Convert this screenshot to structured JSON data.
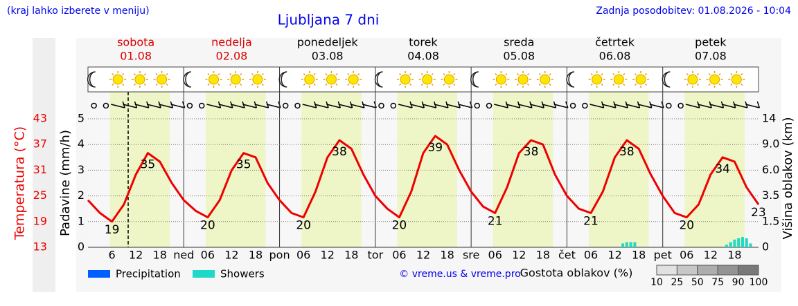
{
  "header": {
    "hint": "(kraj lahko izberete v meniju)",
    "title": "Ljubljana 7 dni",
    "updated": "Zadnja posodobitev: 01.08.2026 - 10:04"
  },
  "chart_data": {
    "type": "line",
    "days": [
      {
        "name": "sobota",
        "date": "01.08"
      },
      {
        "name": "nedelja",
        "date": "02.08"
      },
      {
        "name": "ponedeljek",
        "date": "03.08"
      },
      {
        "name": "torek",
        "date": "04.08"
      },
      {
        "name": "sreda",
        "date": "05.08"
      },
      {
        "name": "četrtek",
        "date": "06.08"
      },
      {
        "name": "petek",
        "date": "07.08"
      }
    ],
    "xlim": [
      0,
      168
    ],
    "xticks": [
      6,
      12,
      18,
      {
        "value": 24,
        "label": "ned"
      },
      {
        "value": 30,
        "label": "06"
      },
      {
        "value": 36,
        "label": "12"
      },
      {
        "value": 42,
        "label": "18"
      },
      {
        "value": 48,
        "label": "pon"
      },
      {
        "value": 54,
        "label": "06"
      },
      {
        "value": 60,
        "label": "12"
      },
      {
        "value": 66,
        "label": "18"
      },
      {
        "value": 72,
        "label": "tor"
      },
      {
        "value": 78,
        "label": "06"
      },
      {
        "value": 84,
        "label": "12"
      },
      {
        "value": 90,
        "label": "18"
      },
      {
        "value": 96,
        "label": "sre"
      },
      {
        "value": 102,
        "label": "06"
      },
      {
        "value": 108,
        "label": "12"
      },
      {
        "value": 114,
        "label": "18"
      },
      {
        "value": 120,
        "label": "čet"
      },
      {
        "value": 126,
        "label": "06"
      },
      {
        "value": 132,
        "label": "12"
      },
      {
        "value": 138,
        "label": "18"
      },
      {
        "value": 144,
        "label": "pet"
      },
      {
        "value": 150,
        "label": "06"
      },
      {
        "value": 156,
        "label": "12"
      },
      {
        "value": 162,
        "label": "18"
      }
    ],
    "now": 10.07,
    "daylight": [
      5.5,
      20.5
    ],
    "temperature": {
      "label": "Temperatura (°C)",
      "color": "#ee0000",
      "ylim": [
        13,
        43
      ],
      "yticks": [
        13,
        19,
        25,
        31,
        37,
        43
      ],
      "x": [
        0,
        3,
        6,
        9,
        12,
        15,
        18,
        21,
        24,
        27,
        30,
        33,
        36,
        39,
        42,
        45,
        48,
        51,
        54,
        57,
        60,
        63,
        66,
        69,
        72,
        75,
        78,
        81,
        84,
        87,
        90,
        93,
        96,
        99,
        102,
        105,
        108,
        111,
        114,
        117,
        120,
        123,
        126,
        129,
        132,
        135,
        138,
        141,
        144,
        147,
        150,
        153,
        156,
        159,
        162,
        165,
        168
      ],
      "values": [
        24,
        21,
        19,
        23,
        30,
        35,
        33,
        28,
        24,
        21.5,
        20,
        24,
        31,
        35,
        34,
        28,
        24,
        21,
        20,
        26,
        34,
        38,
        36,
        30,
        25,
        22,
        20,
        26,
        35,
        39,
        37,
        31,
        26,
        22.5,
        21,
        27,
        35,
        38,
        37,
        30,
        25,
        22,
        21,
        26,
        34,
        38,
        36,
        30,
        25,
        21,
        20,
        23,
        30,
        34,
        33,
        27,
        23
      ],
      "extremes": [
        {
          "x": 6,
          "value": 19
        },
        {
          "x": 15,
          "value": 35
        },
        {
          "x": 30,
          "value": 20
        },
        {
          "x": 39,
          "value": 35
        },
        {
          "x": 54,
          "value": 20
        },
        {
          "x": 63,
          "value": 38
        },
        {
          "x": 78,
          "value": 20
        },
        {
          "x": 87,
          "value": 39
        },
        {
          "x": 102,
          "value": 21
        },
        {
          "x": 111,
          "value": 38
        },
        {
          "x": 126,
          "value": 21
        },
        {
          "x": 135,
          "value": 38
        },
        {
          "x": 150,
          "value": 20
        },
        {
          "x": 159,
          "value": 34
        },
        {
          "x": 168,
          "value": 23
        }
      ]
    },
    "precipitation": {
      "label": "Padavine (mm/h)",
      "ylim": [
        0,
        5
      ],
      "yticks": [
        0,
        1,
        2,
        3,
        4,
        5
      ],
      "series": [
        {
          "name": "Precipitation",
          "color": "#0060ff",
          "x": [],
          "values": []
        },
        {
          "name": "Showers",
          "color": "#20d8c8",
          "x": [
            134,
            135,
            136,
            137,
            160,
            161,
            162,
            163,
            164,
            165,
            166
          ],
          "values": [
            0.15,
            0.2,
            0.2,
            0.2,
            0.1,
            0.2,
            0.3,
            0.35,
            0.4,
            0.35,
            0.15
          ]
        }
      ]
    },
    "cloud_height": {
      "label": "Višina oblakov (km)",
      "y2lim": [
        0,
        14
      ],
      "y2ticks": [
        0,
        1.5,
        3.5,
        {
          "value": 6,
          "label": "6.0"
        },
        {
          "value": 9,
          "label": "9.0"
        },
        14
      ]
    },
    "cloud_density": {
      "label": "Gostota oblakov (%)",
      "levels": [
        10,
        25,
        50,
        75,
        90,
        100
      ]
    },
    "credit": "© vreme.us & vreme.pro"
  }
}
